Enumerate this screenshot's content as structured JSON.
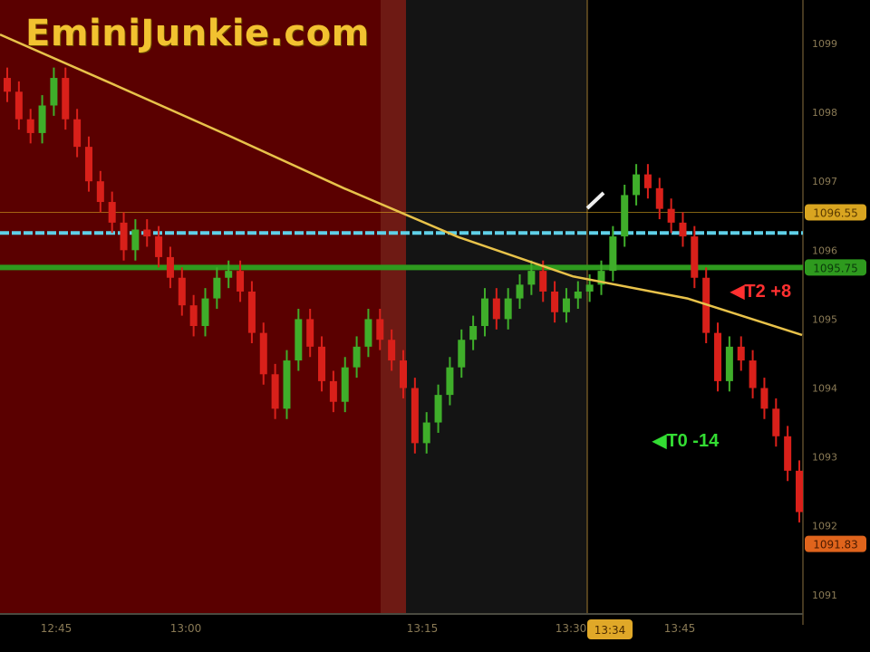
{
  "logo": "EminiJunkie.com",
  "chart_data": {
    "type": "candlestick",
    "y_axis": {
      "range": [
        1090.6,
        1099.6
      ],
      "tick_labels": [
        "1099",
        "1098",
        "1097",
        "1096",
        "1095",
        "1094",
        "1093",
        "1092",
        "1091"
      ],
      "side": "right"
    },
    "x_axis": {
      "tick_labels": [
        "12:45",
        "13:00",
        "13:15",
        "13:30",
        "13:45"
      ],
      "cursor_label": "13:34"
    },
    "close": [
      1098.3,
      1097.9,
      1097.7,
      1098.1,
      1098.5,
      1097.9,
      1097.5,
      1097.0,
      1096.7,
      1096.4,
      1096.0,
      1096.3,
      1096.2,
      1095.9,
      1095.6,
      1095.2,
      1094.9,
      1095.3,
      1095.6,
      1095.7,
      1095.4,
      1094.8,
      1094.2,
      1093.7,
      1094.4,
      1095.0,
      1094.6,
      1094.1,
      1093.8,
      1094.3,
      1094.6,
      1095.0,
      1094.7,
      1094.4,
      1094.0,
      1093.2,
      1093.5,
      1093.9,
      1094.3,
      1094.7,
      1094.9,
      1095.3,
      1095.0,
      1095.3,
      1095.5,
      1095.7,
      1095.4,
      1095.1,
      1095.3,
      1095.4,
      1095.5,
      1095.7,
      1096.2,
      1096.8,
      1097.1,
      1096.9,
      1096.6,
      1096.4,
      1096.2,
      1095.6,
      1094.8,
      1094.1,
      1094.6,
      1094.4,
      1094.0,
      1093.7,
      1093.3,
      1092.8,
      1092.2
    ],
    "moving_average": {
      "color": "#e8c24a",
      "values_at_start_to_end": [
        1099.13,
        1098.4,
        1097.66,
        1096.9,
        1096.19,
        1095.62,
        1095.3,
        1094.77
      ]
    },
    "horizontal_lines": [
      {
        "price": 1096.55,
        "color": "#d9a520",
        "label": "1096.55"
      },
      {
        "price": 1096.25,
        "color": "#5fd0e8"
      },
      {
        "price": 1095.75,
        "color": "#2e9a1e",
        "label": "1095.75"
      }
    ],
    "last_price": {
      "price": 1091.83,
      "label": "1091.83",
      "color": "#e0641c"
    },
    "annotations": [
      {
        "text": "T2 +8",
        "color": "#ff3030"
      },
      {
        "text": "T0 -14",
        "color": "#33dd33"
      }
    ],
    "colors": {
      "up": "#3fae2a",
      "down": "#d9201a",
      "session_bg": "#5a0000",
      "mid_bg": "#141414"
    }
  }
}
